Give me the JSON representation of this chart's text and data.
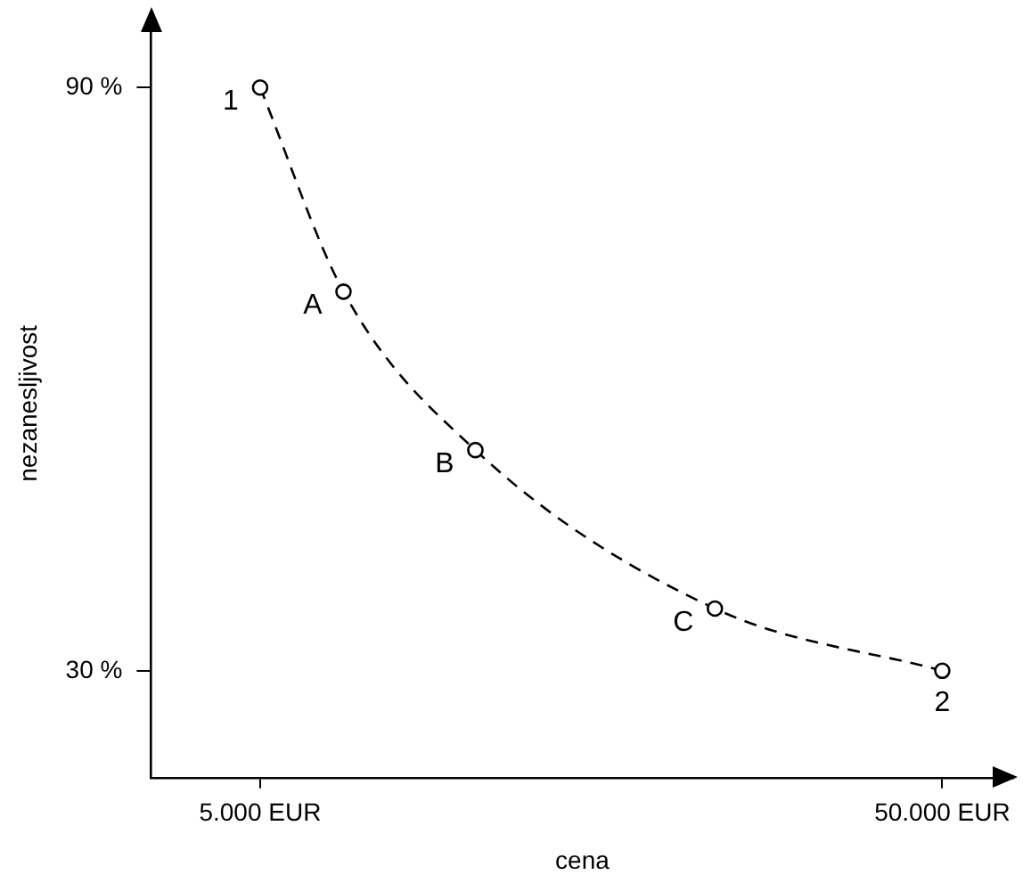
{
  "chart_data": {
    "type": "line",
    "xlabel": "cena",
    "ylabel": "nezanesljivost",
    "x": [
      5000,
      10500,
      19200,
      35000,
      50000
    ],
    "series": [
      {
        "color": "#000000",
        "values": [
          90,
          69,
          52.7,
          36.4,
          30
        ]
      }
    ],
    "xlim": [
      -2200,
      54700
    ],
    "ylim": [
      19,
      96
    ],
    "xticks": [
      {
        "value": 5000,
        "label": "5.000 EUR"
      },
      {
        "value": 50000,
        "label": "50.000 EUR"
      }
    ],
    "yticks": [
      {
        "value": 30,
        "label": "30 %"
      },
      {
        "value": 90,
        "label": "90 %"
      }
    ],
    "grid": false,
    "legend": false,
    "marker": "circle",
    "line_style": "dashed",
    "annotations": [
      {
        "text": "1",
        "x": 5000,
        "y": 90
      },
      {
        "text": "A",
        "x": 10500,
        "y": 69
      },
      {
        "text": "B",
        "x": 19200,
        "y": 52.7
      },
      {
        "text": "C",
        "x": 35000,
        "y": 36.4
      },
      {
        "text": "2",
        "x": 50000,
        "y": 30
      }
    ]
  }
}
